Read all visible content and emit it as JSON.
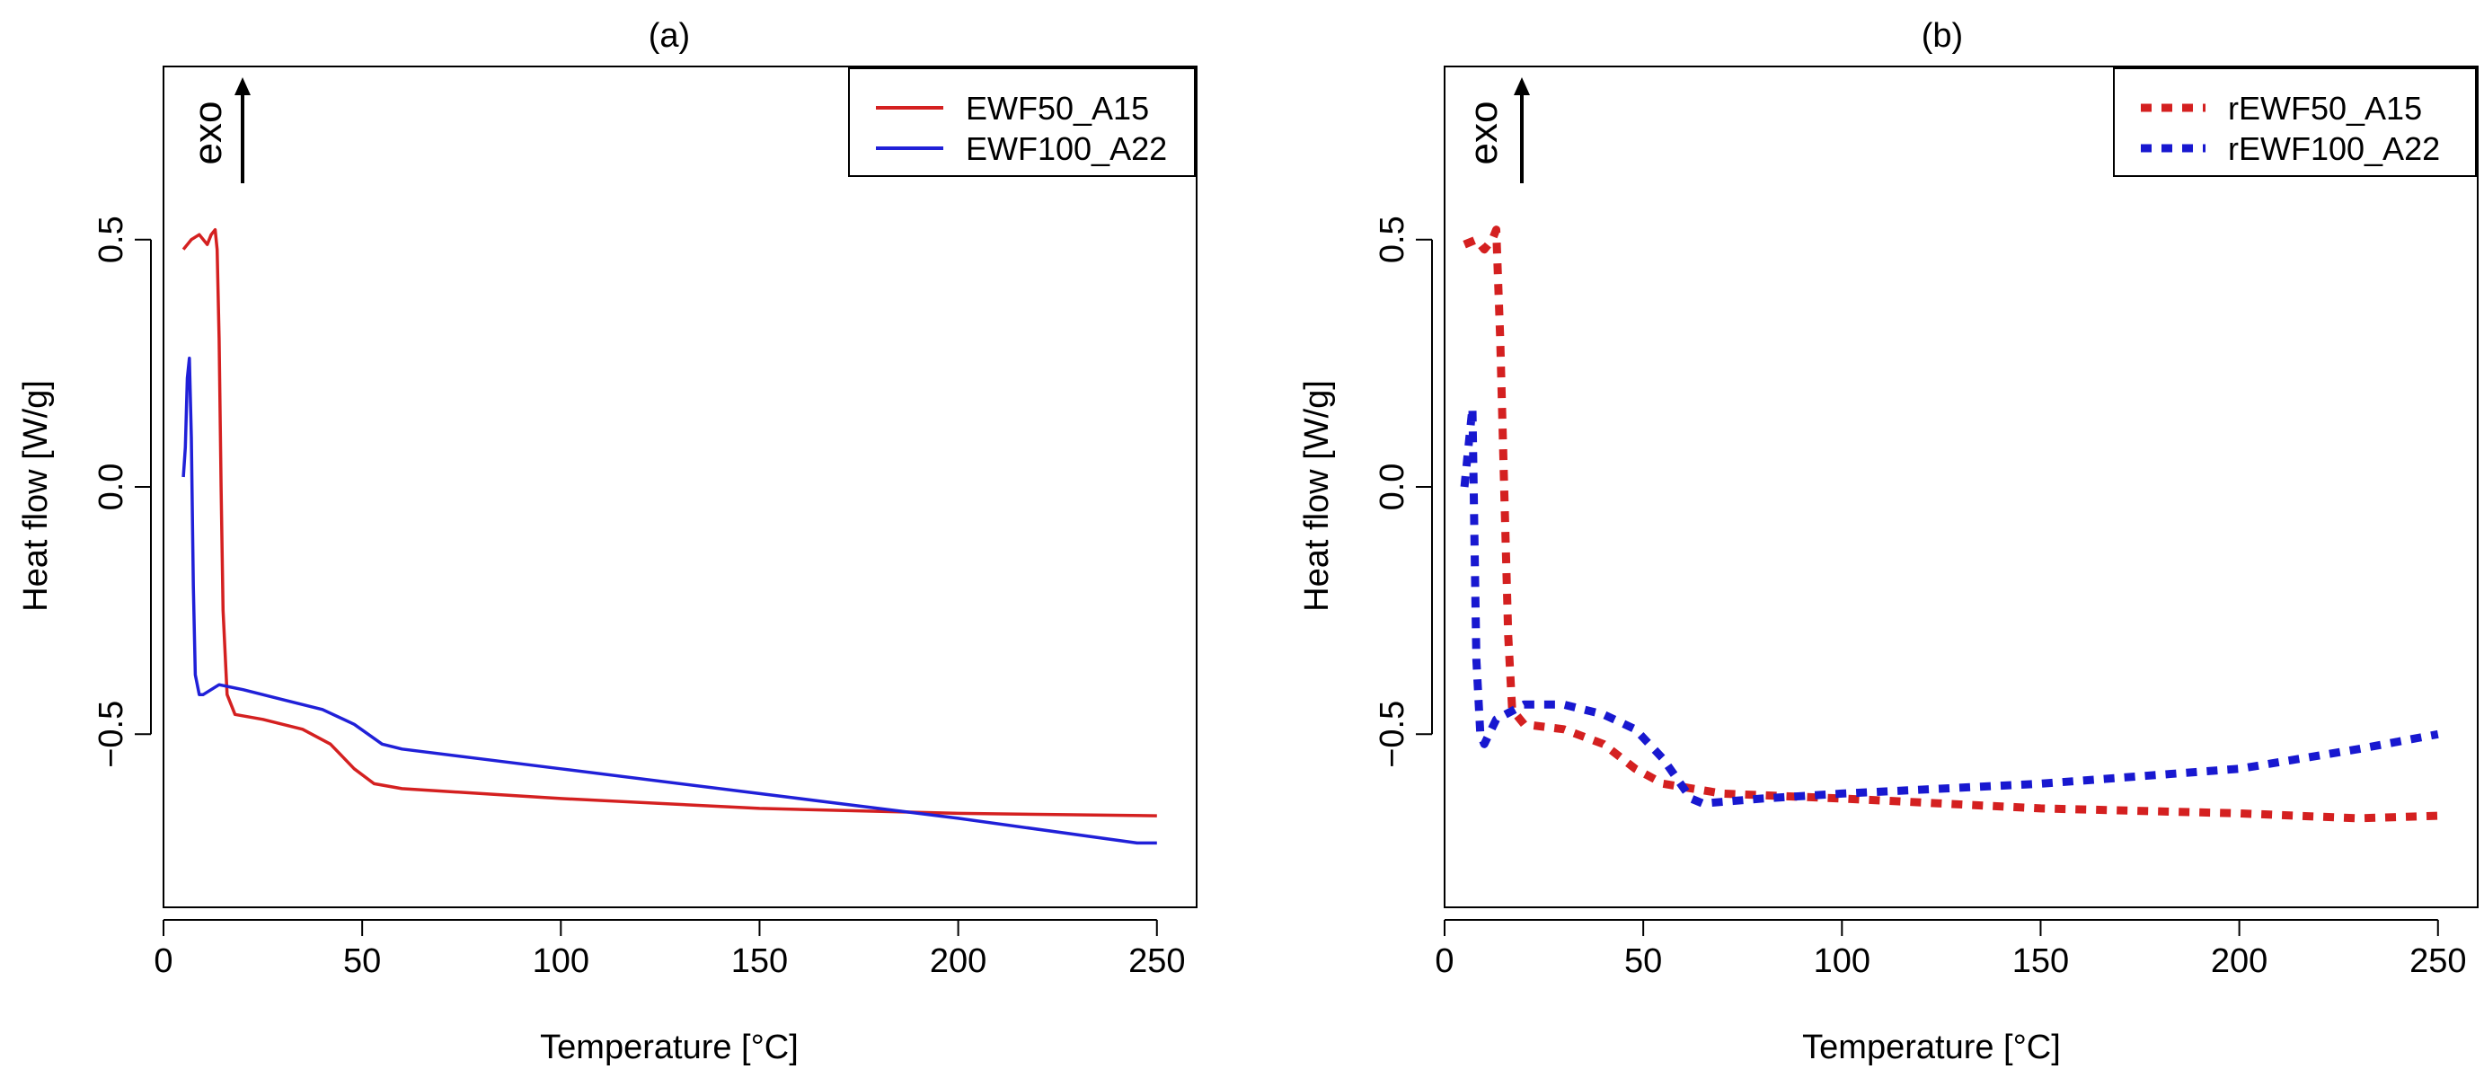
{
  "chart_data": [
    {
      "type": "line",
      "panel_label": "(a)",
      "xlabel": "Temperature [°C]",
      "ylabel": "Heat flow [W/g]",
      "xlim": [
        0,
        260
      ],
      "ylim": [
        -0.85,
        0.85
      ],
      "xticks": [
        0,
        50,
        100,
        150,
        200,
        250
      ],
      "xtick_labels": [
        "0",
        "50",
        "100",
        "150",
        "200",
        "250"
      ],
      "yticks": [
        -0.5,
        0,
        0.5
      ],
      "ytick_labels": [
        "−0.5",
        "0.0",
        "0.5"
      ],
      "annotation": "exo",
      "legend_position": "top-right",
      "series": [
        {
          "name": "EWF50_A15",
          "color": "#d42020",
          "style": "solid",
          "points": [
            [
              5,
              0.48
            ],
            [
              7,
              0.5
            ],
            [
              9,
              0.51
            ],
            [
              11,
              0.49
            ],
            [
              12,
              0.51
            ],
            [
              13,
              0.52
            ],
            [
              13.5,
              0.48
            ],
            [
              14,
              0.3
            ],
            [
              14.5,
              0.0
            ],
            [
              15,
              -0.25
            ],
            [
              16,
              -0.42
            ],
            [
              18,
              -0.46
            ],
            [
              25,
              -0.47
            ],
            [
              35,
              -0.49
            ],
            [
              42,
              -0.52
            ],
            [
              48,
              -0.57
            ],
            [
              53,
              -0.6
            ],
            [
              60,
              -0.61
            ],
            [
              80,
              -0.62
            ],
            [
              100,
              -0.63
            ],
            [
              150,
              -0.65
            ],
            [
              200,
              -0.66
            ],
            [
              250,
              -0.665
            ]
          ]
        },
        {
          "name": "EWF100_A22",
          "color": "#2020d8",
          "style": "solid",
          "points": [
            [
              5,
              0.02
            ],
            [
              5.5,
              0.08
            ],
            [
              6,
              0.22
            ],
            [
              6.5,
              0.26
            ],
            [
              7,
              0.1
            ],
            [
              7.5,
              -0.2
            ],
            [
              8,
              -0.38
            ],
            [
              9,
              -0.42
            ],
            [
              10,
              -0.42
            ],
            [
              14,
              -0.4
            ],
            [
              20,
              -0.41
            ],
            [
              30,
              -0.43
            ],
            [
              40,
              -0.45
            ],
            [
              48,
              -0.48
            ],
            [
              55,
              -0.52
            ],
            [
              60,
              -0.53
            ],
            [
              80,
              -0.55
            ],
            [
              100,
              -0.57
            ],
            [
              150,
              -0.62
            ],
            [
              200,
              -0.67
            ],
            [
              245,
              -0.72
            ],
            [
              250,
              -0.72
            ]
          ]
        }
      ]
    },
    {
      "type": "line",
      "panel_label": "(b)",
      "xlabel": "Temperature [°C]",
      "ylabel": "Heat flow [W/g]",
      "xlim": [
        0,
        260
      ],
      "ylim": [
        -0.85,
        0.85
      ],
      "xticks": [
        0,
        50,
        100,
        150,
        200,
        250
      ],
      "xtick_labels": [
        "0",
        "50",
        "100",
        "150",
        "200",
        "250"
      ],
      "yticks": [
        -0.5,
        0,
        0.5
      ],
      "ytick_labels": [
        "−0.5",
        "0.0",
        "0.5"
      ],
      "annotation": "exo",
      "legend_position": "top-right",
      "series": [
        {
          "name": "rEWF50_A15",
          "color": "#d42020",
          "style": "dotted",
          "points": [
            [
              5,
              0.49
            ],
            [
              8,
              0.5
            ],
            [
              10,
              0.48
            ],
            [
              12,
              0.5
            ],
            [
              13,
              0.52
            ],
            [
              14,
              0.3
            ],
            [
              15,
              0.0
            ],
            [
              16,
              -0.3
            ],
            [
              17,
              -0.45
            ],
            [
              20,
              -0.48
            ],
            [
              30,
              -0.49
            ],
            [
              40,
              -0.52
            ],
            [
              48,
              -0.57
            ],
            [
              55,
              -0.6
            ],
            [
              70,
              -0.62
            ],
            [
              100,
              -0.63
            ],
            [
              150,
              -0.65
            ],
            [
              200,
              -0.66
            ],
            [
              230,
              -0.67
            ],
            [
              250,
              -0.665
            ]
          ]
        },
        {
          "name": "rEWF100_A22",
          "color": "#1818d0",
          "style": "dotted",
          "points": [
            [
              5,
              0.0
            ],
            [
              6,
              0.08
            ],
            [
              7,
              0.16
            ],
            [
              7.5,
              -0.1
            ],
            [
              8,
              -0.35
            ],
            [
              9,
              -0.5
            ],
            [
              10,
              -0.52
            ],
            [
              13,
              -0.47
            ],
            [
              20,
              -0.44
            ],
            [
              30,
              -0.44
            ],
            [
              40,
              -0.46
            ],
            [
              48,
              -0.49
            ],
            [
              55,
              -0.55
            ],
            [
              62,
              -0.63
            ],
            [
              65,
              -0.64
            ],
            [
              80,
              -0.63
            ],
            [
              100,
              -0.62
            ],
            [
              150,
              -0.6
            ],
            [
              200,
              -0.57
            ],
            [
              230,
              -0.53
            ],
            [
              250,
              -0.5
            ]
          ]
        }
      ]
    }
  ]
}
